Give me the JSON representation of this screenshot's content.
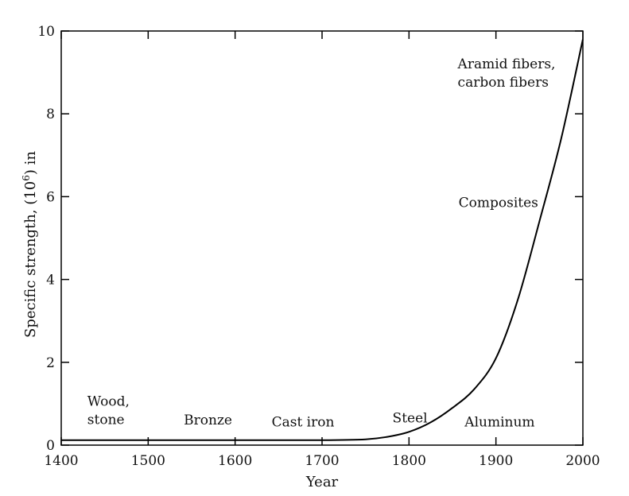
{
  "chart_data": {
    "type": "line",
    "title": "",
    "xlabel": "Year",
    "ylabel_main": "Specific strength, (10",
    "ylabel_sup": "6",
    "ylabel_end": ") in",
    "xlim": [
      1400,
      2000
    ],
    "ylim": [
      0,
      10
    ],
    "xticks": [
      1400,
      1500,
      1600,
      1700,
      1800,
      1900,
      2000
    ],
    "yticks": [
      0,
      2,
      4,
      6,
      8,
      10
    ],
    "grid": false,
    "series": [
      {
        "x": [
          1400,
          1500,
          1600,
          1700,
          1750,
          1775,
          1800,
          1825,
          1850,
          1875,
          1900,
          1925,
          1950,
          1975,
          2000
        ],
        "y": [
          0.12,
          0.12,
          0.12,
          0.12,
          0.14,
          0.2,
          0.32,
          0.55,
          0.9,
          1.35,
          2.1,
          3.5,
          5.4,
          7.4,
          9.8
        ]
      }
    ],
    "annotations": [
      {
        "lines": [
          "Wood,",
          "stone"
        ],
        "x": 1430,
        "y": 0.95
      },
      {
        "lines": [
          "Bronze"
        ],
        "x": 1541,
        "y": 0.5
      },
      {
        "lines": [
          "Cast iron"
        ],
        "x": 1642,
        "y": 0.45
      },
      {
        "lines": [
          "Steel"
        ],
        "x": 1781,
        "y": 0.55
      },
      {
        "lines": [
          "Aluminum"
        ],
        "x": 1864,
        "y": 0.45
      },
      {
        "lines": [
          "Composites"
        ],
        "x": 1857,
        "y": 5.75
      },
      {
        "lines": [
          "Aramid fibers,",
          "carbon fibers"
        ],
        "x": 1856,
        "y": 9.1
      }
    ]
  }
}
